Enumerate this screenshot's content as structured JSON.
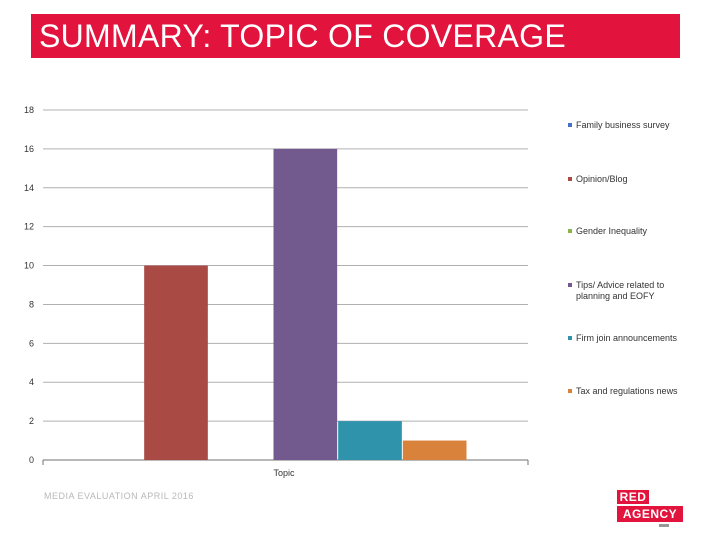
{
  "slide": {
    "title": "SUMMARY: TOPIC OF COVERAGE",
    "footer": "MEDIA EVALUATION APRIL 2016",
    "logo": {
      "line1": "RED",
      "line2": "AGENCY"
    },
    "accent_color": "#e2133c"
  },
  "chart_data": {
    "type": "bar",
    "categories": [
      "Topic"
    ],
    "series": [
      {
        "name": "Family business survey",
        "values": [
          0
        ],
        "color": "#4472c4"
      },
      {
        "name": "Opinion/Blog",
        "values": [
          10
        ],
        "color": "#a94a44"
      },
      {
        "name": "Gender Inequality",
        "values": [
          0
        ],
        "color": "#8db34b"
      },
      {
        "name": "Tips/ Advice related to planning and EOFY",
        "values": [
          16
        ],
        "color": "#725a8f"
      },
      {
        "name": "Firm join announcements",
        "values": [
          2
        ],
        "color": "#2e93ab"
      },
      {
        "name": "Tax and regulations news",
        "values": [
          1
        ],
        "color": "#d9823c"
      }
    ],
    "ylim": [
      0,
      18
    ],
    "yticks": [
      0,
      2,
      4,
      6,
      8,
      10,
      12,
      14,
      16,
      18
    ],
    "grid": true,
    "legend": "right"
  }
}
